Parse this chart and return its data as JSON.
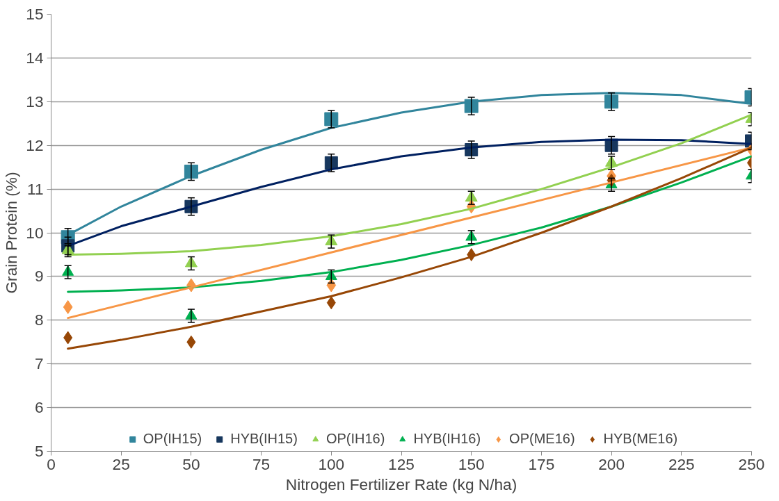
{
  "chart_data": {
    "type": "scatter",
    "xlabel": "Nitrogen Fertilizer Rate (kg N/ha)",
    "ylabel": "Grain Protein (%)",
    "xlim": [
      0,
      250
    ],
    "xticks": [
      0,
      25,
      50,
      75,
      100,
      125,
      150,
      175,
      200,
      225,
      250
    ],
    "ylim": [
      5,
      15
    ],
    "yticks": [
      5,
      6,
      7,
      8,
      9,
      10,
      11,
      12,
      13,
      14,
      15
    ],
    "grid": "y",
    "legend": "bottom",
    "x": [
      6,
      50,
      100,
      150,
      200,
      250
    ],
    "series": [
      {
        "name": "OP(IH15)",
        "color": "#31859c",
        "marker": "square",
        "values": [
          9.9,
          11.4,
          12.6,
          12.9,
          13.0,
          13.1
        ],
        "errors": [
          0.2,
          0.2,
          0.2,
          0.2,
          0.2,
          0.2
        ]
      },
      {
        "name": "HYB(IH15)",
        "color": "#17375e",
        "marker": "square",
        "values": [
          9.7,
          10.6,
          11.6,
          11.9,
          12.0,
          12.1
        ],
        "errors": [
          0.2,
          0.2,
          0.2,
          0.2,
          0.2,
          0.2
        ]
      },
      {
        "name": "OP(IH16)",
        "color": "#92d050",
        "marker": "triangle",
        "values": [
          9.6,
          9.3,
          9.8,
          10.8,
          11.6,
          12.6
        ],
        "errors": [
          0.15,
          0.15,
          0.15,
          0.15,
          0.15,
          0.15
        ]
      },
      {
        "name": "HYB(IH16)",
        "color": "#00b050",
        "marker": "triangle",
        "values": [
          9.1,
          8.1,
          9.0,
          9.9,
          11.1,
          11.3
        ],
        "errors": [
          0.15,
          0.15,
          0.15,
          0.15,
          0.15,
          0.15
        ]
      },
      {
        "name": "OP(ME16)",
        "color": "#f79646",
        "marker": "diamond",
        "values": [
          8.3,
          8.8,
          8.8,
          10.6,
          11.3,
          11.9
        ]
      },
      {
        "name": "HYB(ME16)",
        "color": "#974706",
        "marker": "diamond",
        "values": [
          7.6,
          7.5,
          8.4,
          9.5,
          11.2,
          11.6
        ]
      },
      {
        "type": "line",
        "color": "#31859c",
        "x": [
          6,
          25,
          50,
          75,
          100,
          125,
          150,
          175,
          200,
          225,
          250
        ],
        "values": [
          9.95,
          10.6,
          11.3,
          11.9,
          12.4,
          12.75,
          13.0,
          13.15,
          13.2,
          13.15,
          12.95
        ]
      },
      {
        "type": "line",
        "color": "#002060",
        "x": [
          6,
          25,
          50,
          75,
          100,
          125,
          150,
          175,
          200,
          225,
          250
        ],
        "values": [
          9.7,
          10.15,
          10.6,
          11.05,
          11.45,
          11.75,
          11.95,
          12.08,
          12.13,
          12.12,
          12.03
        ]
      },
      {
        "type": "line",
        "color": "#92d050",
        "x": [
          6,
          25,
          50,
          75,
          100,
          125,
          150,
          175,
          200,
          225,
          250
        ],
        "values": [
          9.5,
          9.52,
          9.58,
          9.72,
          9.92,
          10.2,
          10.55,
          11.0,
          11.5,
          12.05,
          12.7
        ]
      },
      {
        "type": "line",
        "color": "#00b050",
        "x": [
          6,
          25,
          50,
          75,
          100,
          125,
          150,
          175,
          200,
          225,
          250
        ],
        "values": [
          8.65,
          8.68,
          8.75,
          8.9,
          9.1,
          9.38,
          9.72,
          10.12,
          10.6,
          11.15,
          11.75
        ]
      },
      {
        "type": "line",
        "color": "#f79646",
        "x": [
          6,
          50,
          100,
          150,
          200,
          250
        ],
        "values": [
          8.05,
          8.75,
          9.55,
          10.35,
          11.15,
          11.95
        ]
      },
      {
        "type": "line",
        "color": "#974706",
        "x": [
          6,
          25,
          50,
          75,
          100,
          125,
          150,
          175,
          200,
          225,
          250
        ],
        "values": [
          7.35,
          7.55,
          7.85,
          8.2,
          8.55,
          8.98,
          9.45,
          10.0,
          10.6,
          11.25,
          11.95
        ]
      }
    ]
  }
}
